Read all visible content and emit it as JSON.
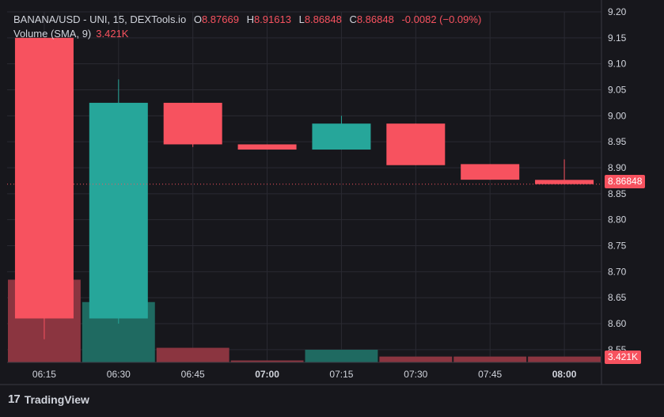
{
  "legend": {
    "symbol": "BANANA/USD - UNI, 15, DEXTools.io",
    "o_label": "O",
    "o_value": "8.87669",
    "h_label": "H",
    "h_value": "8.91613",
    "l_label": "L",
    "l_value": "8.86848",
    "c_label": "C",
    "c_value": "8.86848",
    "change": "-0.0082 (−0.09%)",
    "volume_label": "Volume (SMA, 9)",
    "volume_value": "3.421K"
  },
  "price_tag": "8.86848",
  "volume_tag": "3.421K",
  "branding": {
    "mark": "17",
    "name": "TradingView"
  },
  "colors": {
    "up": "#26a69a",
    "down": "#f7525f",
    "up_volume": "#1f6a61",
    "down_volume": "#8b3540",
    "background": "#17171c",
    "grid": "#2a2a32"
  },
  "chart_data": {
    "type": "candlestick",
    "x": [
      "06:15",
      "06:30",
      "06:45",
      "07:00",
      "07:15",
      "07:30",
      "07:45",
      "08:00"
    ],
    "x_tick_bold": [
      false,
      false,
      false,
      true,
      false,
      false,
      false,
      true
    ],
    "ohlc": [
      {
        "o": 9.15,
        "h": 9.15,
        "l": 8.57,
        "c": 8.61
      },
      {
        "o": 8.61,
        "h": 9.07,
        "l": 8.6,
        "c": 9.025
      },
      {
        "o": 9.025,
        "h": 9.025,
        "l": 8.94,
        "c": 8.945
      },
      {
        "o": 8.945,
        "h": 8.945,
        "l": 8.935,
        "c": 8.935
      },
      {
        "o": 8.935,
        "h": 9.0,
        "l": 8.935,
        "c": 8.985
      },
      {
        "o": 8.985,
        "h": 8.985,
        "l": 8.905,
        "c": 8.905
      },
      {
        "o": 8.907,
        "h": 8.907,
        "l": 8.877,
        "c": 8.877
      },
      {
        "o": 8.87669,
        "h": 8.91613,
        "l": 8.86848,
        "c": 8.86848
      }
    ],
    "volume_share": [
      0.85,
      0.62,
      0.15,
      0.02,
      0.13,
      0.06,
      0.06,
      0.06
    ],
    "y_ticks": [
      9.2,
      9.15,
      9.1,
      9.05,
      9.0,
      8.95,
      8.9,
      8.85,
      8.8,
      8.75,
      8.7,
      8.65,
      8.6,
      8.55
    ],
    "ylim": [
      8.53,
      9.2
    ],
    "last_price": 8.86848,
    "grid": true
  }
}
